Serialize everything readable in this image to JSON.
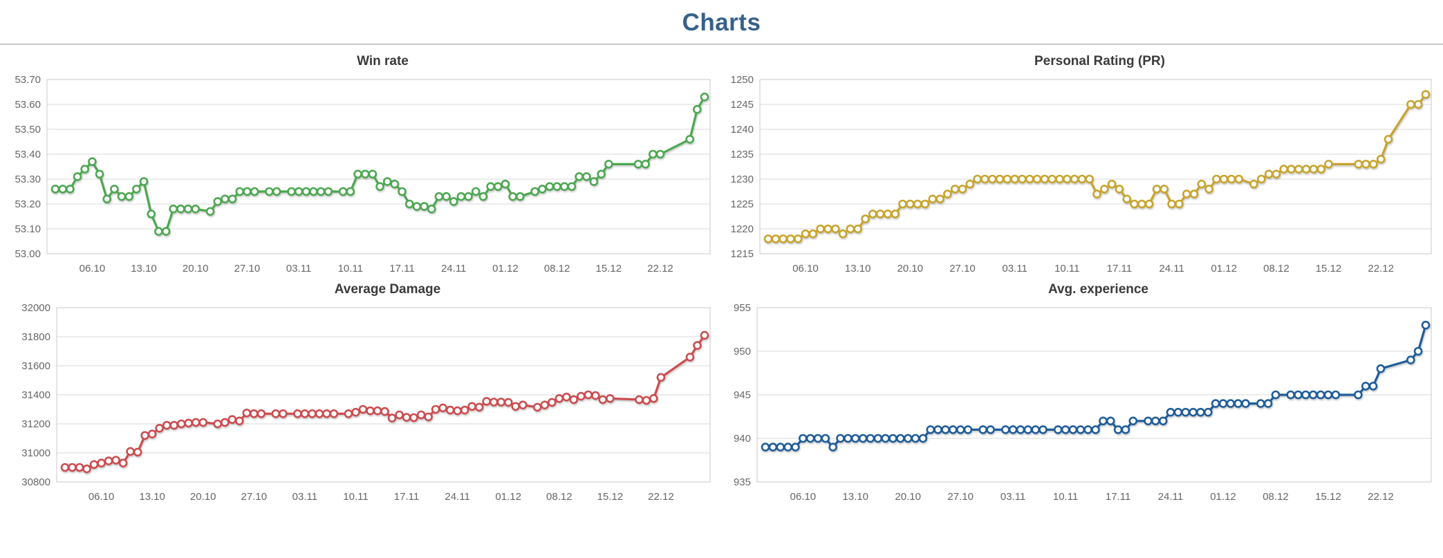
{
  "page": {
    "title": "Charts"
  },
  "colors": {
    "page_title": "#35618a",
    "chart_title": "#3a3a3a",
    "grid": "#dadada",
    "plot_border": "#c9c9c9",
    "axis_text": "#666666",
    "win_rate": "#4ca750",
    "personal_rating": "#c7a42d",
    "average_damage": "#cb4c4f",
    "avg_experience": "#1f5c99"
  },
  "chart_data": [
    {
      "type": "line",
      "title": "Win rate",
      "color": "#4ca750",
      "y_min": 53.0,
      "y_max": 53.7,
      "y_step": 0.1,
      "y_decimals": 2,
      "ylim": [
        53.0,
        53.7
      ],
      "grid": true,
      "legend_position": "none",
      "x_tick_labels": [
        "06.10",
        "13.10",
        "20.10",
        "27.10",
        "03.11",
        "10.11",
        "17.11",
        "24.11",
        "01.12",
        "08.12",
        "15.12",
        "22.12"
      ],
      "x_tick_days": [
        5,
        12,
        19,
        26,
        33,
        40,
        47,
        54,
        61,
        68,
        75,
        82
      ],
      "values": [
        53.26,
        53.26,
        53.26,
        53.31,
        53.34,
        53.37,
        53.32,
        53.22,
        53.26,
        53.23,
        53.23,
        53.26,
        53.29,
        53.16,
        53.09,
        53.09,
        53.18,
        53.18,
        53.18,
        53.18,
        null,
        53.17,
        53.21,
        53.22,
        53.22,
        53.25,
        53.25,
        53.25,
        null,
        53.25,
        53.25,
        null,
        53.25,
        53.25,
        53.25,
        53.25,
        53.25,
        53.25,
        null,
        53.25,
        53.25,
        53.32,
        53.32,
        53.32,
        53.27,
        53.29,
        53.28,
        53.25,
        53.2,
        53.19,
        53.19,
        53.18,
        53.23,
        53.23,
        53.21,
        53.23,
        53.23,
        53.25,
        53.23,
        53.27,
        53.27,
        53.28,
        53.23,
        53.23,
        null,
        53.25,
        53.26,
        53.27,
        53.27,
        53.27,
        53.27,
        53.31,
        53.31,
        53.29,
        53.32,
        53.36,
        null,
        null,
        null,
        53.36,
        53.36,
        53.4,
        53.4,
        null,
        null,
        null,
        53.46,
        53.58,
        53.63
      ]
    },
    {
      "type": "line",
      "title": "Personal Rating (PR)",
      "color": "#c7a42d",
      "y_min": 1215,
      "y_max": 1250,
      "y_step": 5,
      "y_decimals": 0,
      "ylim": [
        1215,
        1250
      ],
      "grid": true,
      "legend_position": "none",
      "x_tick_labels": [
        "06.10",
        "13.10",
        "20.10",
        "27.10",
        "03.11",
        "10.11",
        "17.11",
        "24.11",
        "01.12",
        "08.12",
        "15.12",
        "22.12"
      ],
      "x_tick_days": [
        5,
        12,
        19,
        26,
        33,
        40,
        47,
        54,
        61,
        68,
        75,
        82
      ],
      "values": [
        1218,
        1218,
        1218,
        1218,
        1218,
        1219,
        1219,
        1220,
        1220,
        1220,
        1219,
        1220,
        1220,
        1222,
        1223,
        1223,
        1223,
        1223,
        1225,
        1225,
        1225,
        1225,
        1226,
        1226,
        1227,
        1228,
        1228,
        1229,
        1230,
        1230,
        1230,
        1230,
        1230,
        1230,
        1230,
        1230,
        1230,
        1230,
        1230,
        1230,
        1230,
        1230,
        1230,
        1230,
        1227,
        1228,
        1229,
        1228,
        1226,
        1225,
        1225,
        1225,
        1228,
        1228,
        1225,
        1225,
        1227,
        1227,
        1229,
        1228,
        1230,
        1230,
        1230,
        1230,
        null,
        1229,
        1230,
        1231,
        1231,
        1232,
        1232,
        1232,
        1232,
        1232,
        1232,
        1233,
        null,
        null,
        null,
        1233,
        1233,
        1233,
        1234,
        1238,
        null,
        null,
        1245,
        1245,
        1247
      ]
    },
    {
      "type": "line",
      "title": "Average Damage",
      "color": "#cb4c4f",
      "y_min": 30800,
      "y_max": 32000,
      "y_step": 200,
      "y_decimals": 0,
      "ylim": [
        30800,
        32000
      ],
      "grid": true,
      "legend_position": "none",
      "x_tick_labels": [
        "06.10",
        "13.10",
        "20.10",
        "27.10",
        "03.11",
        "10.11",
        "17.11",
        "24.11",
        "01.12",
        "08.12",
        "15.12",
        "22.12"
      ],
      "x_tick_days": [
        5,
        12,
        19,
        26,
        33,
        40,
        47,
        54,
        61,
        68,
        75,
        82
      ],
      "values": [
        30900,
        30900,
        30900,
        30890,
        30920,
        30930,
        30945,
        30950,
        30930,
        31010,
        31005,
        31120,
        31130,
        31170,
        31190,
        31190,
        31200,
        31205,
        31210,
        31210,
        null,
        31200,
        31210,
        31230,
        31220,
        31275,
        31270,
        31270,
        null,
        31270,
        31270,
        null,
        31270,
        31270,
        31270,
        31270,
        31270,
        31270,
        null,
        31270,
        31280,
        31300,
        31290,
        31290,
        31285,
        31240,
        31262,
        31245,
        31243,
        31262,
        31248,
        31300,
        31310,
        31295,
        31290,
        31295,
        31320,
        31315,
        31355,
        31350,
        31350,
        31348,
        31320,
        31330,
        null,
        31315,
        31330,
        31348,
        31375,
        31385,
        31367,
        31390,
        31400,
        31395,
        31367,
        31375,
        null,
        null,
        null,
        31367,
        31362,
        31375,
        31520,
        null,
        null,
        null,
        31660,
        31740,
        31810
      ]
    },
    {
      "type": "line",
      "title": "Avg. experience",
      "color": "#1f5c99",
      "y_min": 935,
      "y_max": 955,
      "y_step": 5,
      "y_decimals": 0,
      "ylim": [
        935,
        955
      ],
      "grid": true,
      "legend_position": "none",
      "x_tick_labels": [
        "06.10",
        "13.10",
        "20.10",
        "27.10",
        "03.11",
        "10.11",
        "17.11",
        "24.11",
        "01.12",
        "08.12",
        "15.12",
        "22.12"
      ],
      "x_tick_days": [
        5,
        12,
        19,
        26,
        33,
        40,
        47,
        54,
        61,
        68,
        75,
        82
      ],
      "values": [
        939,
        939,
        939,
        939,
        939,
        940,
        940,
        940,
        940,
        939,
        940,
        940,
        940,
        940,
        940,
        940,
        940,
        940,
        940,
        940,
        940,
        940,
        941,
        941,
        941,
        941,
        941,
        941,
        null,
        941,
        941,
        null,
        941,
        941,
        941,
        941,
        941,
        941,
        null,
        941,
        941,
        941,
        941,
        941,
        941,
        942,
        942,
        941,
        941,
        942,
        null,
        942,
        942,
        942,
        943,
        943,
        943,
        943,
        943,
        943,
        944,
        944,
        944,
        944,
        944,
        null,
        944,
        944,
        945,
        null,
        945,
        945,
        945,
        945,
        945,
        945,
        945,
        null,
        null,
        945,
        946,
        946,
        948,
        null,
        null,
        null,
        949,
        950,
        953
      ]
    }
  ]
}
